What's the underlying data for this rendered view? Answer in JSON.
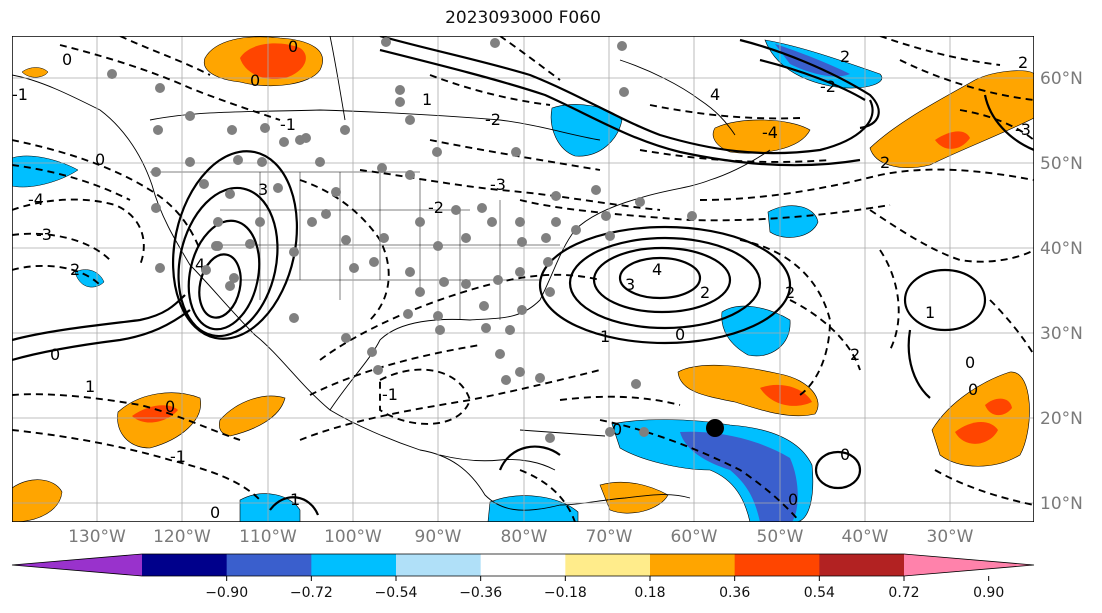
{
  "title": "2023093000 F060",
  "lat_labels": [
    "60°N",
    "50°N",
    "40°N",
    "30°N",
    "20°N",
    "10°N"
  ],
  "lon_labels": [
    "130°W",
    "120°W",
    "110°W",
    "100°W",
    "90°W",
    "80°W",
    "70°W",
    "60°W",
    "50°W",
    "40°W",
    "30°W"
  ],
  "contour_labels": [
    "0",
    "-1",
    "-2",
    "-3",
    "-4",
    "1",
    "2",
    "3",
    "4"
  ],
  "colorbar": {
    "ticks": [
      "−0.90",
      "−0.72",
      "−0.54",
      "−0.36",
      "−0.18",
      "0.18",
      "0.36",
      "0.54",
      "0.72",
      "0.90"
    ],
    "colors": [
      "#9932cc",
      "#00008b",
      "#3a5fcd",
      "#00bfff",
      "#b0e0f8",
      "#ffffff",
      "#ffec8b",
      "#ffa500",
      "#ff4500",
      "#b22222",
      "#ff82ab"
    ]
  },
  "colors": {
    "frame": "#000000",
    "grid": "#aaaaaa",
    "station_dot": "#808080",
    "marker": "#000000"
  }
}
